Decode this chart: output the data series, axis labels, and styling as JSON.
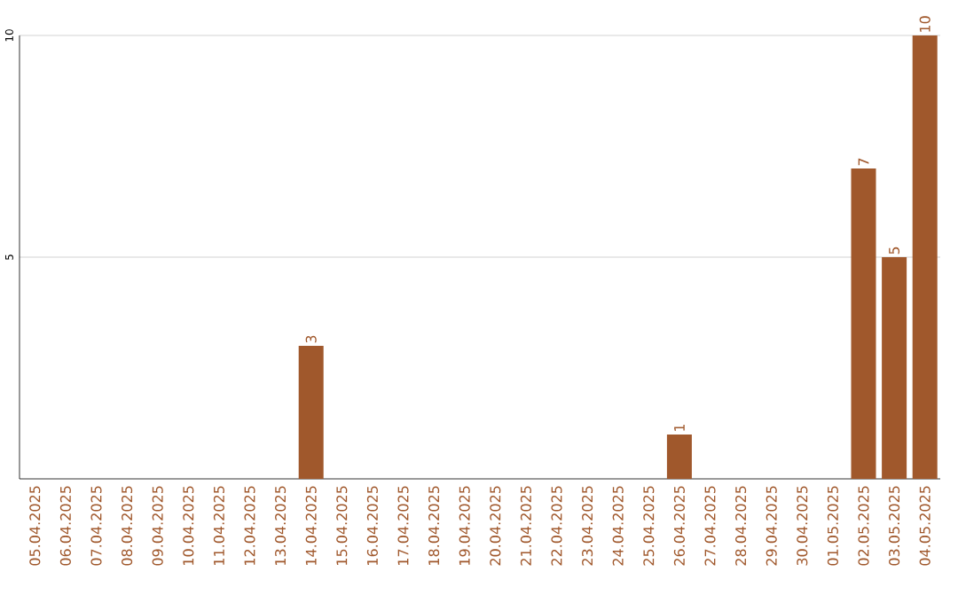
{
  "chart_data": {
    "type": "bar",
    "categories": [
      "05.04.2025",
      "06.04.2025",
      "07.04.2025",
      "08.04.2025",
      "09.04.2025",
      "10.04.2025",
      "11.04.2025",
      "12.04.2025",
      "13.04.2025",
      "14.04.2025",
      "15.04.2025",
      "16.04.2025",
      "17.04.2025",
      "18.04.2025",
      "19.04.2025",
      "20.04.2025",
      "21.04.2025",
      "22.04.2025",
      "23.04.2025",
      "24.04.2025",
      "25.04.2025",
      "26.04.2025",
      "27.04.2025",
      "28.04.2025",
      "29.04.2025",
      "30.04.2025",
      "01.05.2025",
      "02.05.2025",
      "03.05.2025",
      "04.05.2025"
    ],
    "values": [
      0,
      0,
      0,
      0,
      0,
      0,
      0,
      0,
      0,
      3,
      0,
      0,
      0,
      0,
      0,
      0,
      0,
      0,
      0,
      0,
      0,
      1,
      0,
      0,
      0,
      0,
      0,
      7,
      5,
      10
    ],
    "value_labels": [
      null,
      null,
      null,
      null,
      null,
      null,
      null,
      null,
      null,
      "3",
      null,
      null,
      null,
      null,
      null,
      null,
      null,
      null,
      null,
      null,
      null,
      "1",
      null,
      null,
      null,
      null,
      null,
      "7",
      "5",
      "10"
    ],
    "color": "#a0582c",
    "ylim": [
      0,
      10
    ],
    "yticks": [
      5,
      10
    ],
    "grid": "y"
  }
}
